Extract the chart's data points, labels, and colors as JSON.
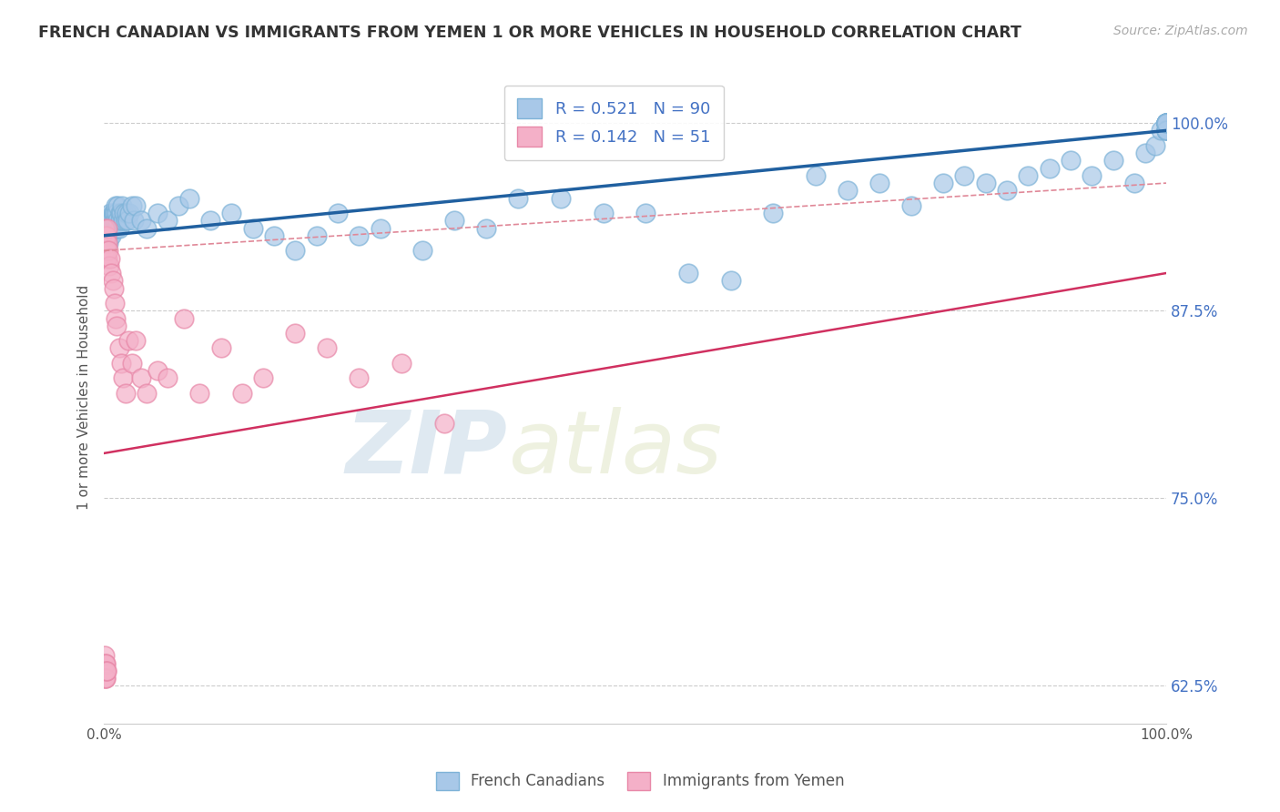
{
  "title": "FRENCH CANADIAN VS IMMIGRANTS FROM YEMEN 1 OR MORE VEHICLES IN HOUSEHOLD CORRELATION CHART",
  "source": "Source: ZipAtlas.com",
  "ylabel": "1 or more Vehicles in Household",
  "xlabel": "",
  "watermark_zip": "ZIP",
  "watermark_atlas": "atlas",
  "blue_R": 0.521,
  "blue_N": 90,
  "pink_R": 0.142,
  "pink_N": 51,
  "blue_label": "French Canadians",
  "pink_label": "Immigrants from Yemen",
  "xlim": [
    0.0,
    100.0
  ],
  "ylim": [
    60.0,
    103.5
  ],
  "yticks": [
    62.5,
    75.0,
    87.5,
    100.0
  ],
  "blue_color": "#a8c8e8",
  "blue_edge_color": "#7eb3d8",
  "pink_color": "#f4b0c8",
  "pink_edge_color": "#e888a8",
  "blue_line_color": "#2060a0",
  "pink_line_color": "#d03060",
  "pink_dash_color": "#e08898",
  "grid_color": "#cccccc",
  "title_color": "#333333",
  "legend_text_color": "#4472c4",
  "ytick_color": "#4472c4",
  "xtick_color": "#555555",
  "blue_scatter_x": [
    0.3,
    0.4,
    0.4,
    0.5,
    0.5,
    0.6,
    0.6,
    0.7,
    0.7,
    0.8,
    0.8,
    0.9,
    0.9,
    1.0,
    1.0,
    1.1,
    1.1,
    1.2,
    1.2,
    1.3,
    1.3,
    1.4,
    1.5,
    1.5,
    1.6,
    1.7,
    1.8,
    1.9,
    2.0,
    2.1,
    2.2,
    2.4,
    2.6,
    2.8,
    3.0,
    3.5,
    4.0,
    5.0,
    6.0,
    7.0,
    8.0,
    10.0,
    12.0,
    14.0,
    16.0,
    18.0,
    20.0,
    22.0,
    24.0,
    26.0,
    30.0,
    33.0,
    36.0,
    39.0,
    43.0,
    47.0,
    51.0,
    55.0,
    59.0,
    63.0,
    67.0,
    70.0,
    73.0,
    76.0,
    79.0,
    81.0,
    83.0,
    85.0,
    87.0,
    89.0,
    91.0,
    93.0,
    95.0,
    97.0,
    98.0,
    99.0,
    99.5,
    100.0,
    100.0,
    100.0,
    100.0,
    100.0,
    100.0,
    100.0,
    100.0,
    100.0,
    100.0,
    100.0,
    100.0,
    100.0
  ],
  "blue_scatter_y": [
    92.5,
    93.0,
    92.0,
    93.5,
    92.5,
    93.0,
    94.0,
    93.5,
    92.5,
    93.0,
    94.0,
    93.5,
    94.0,
    93.0,
    94.0,
    93.5,
    94.5,
    93.0,
    94.0,
    93.5,
    94.5,
    93.0,
    94.0,
    93.5,
    94.0,
    94.5,
    93.5,
    94.0,
    93.5,
    94.0,
    93.5,
    94.0,
    94.5,
    93.5,
    94.5,
    93.5,
    93.0,
    94.0,
    93.5,
    94.5,
    95.0,
    93.5,
    94.0,
    93.0,
    92.5,
    91.5,
    92.5,
    94.0,
    92.5,
    93.0,
    91.5,
    93.5,
    93.0,
    95.0,
    95.0,
    94.0,
    94.0,
    90.0,
    89.5,
    94.0,
    96.5,
    95.5,
    96.0,
    94.5,
    96.0,
    96.5,
    96.0,
    95.5,
    96.5,
    97.0,
    97.5,
    96.5,
    97.5,
    96.0,
    98.0,
    98.5,
    99.5,
    100.0,
    99.5,
    100.0,
    99.5,
    100.0,
    100.0,
    100.0,
    99.5,
    100.0,
    100.0,
    100.0,
    99.5,
    100.0
  ],
  "pink_scatter_x": [
    0.05,
    0.1,
    0.1,
    0.15,
    0.2,
    0.2,
    0.25,
    0.3,
    0.3,
    0.35,
    0.4,
    0.5,
    0.6,
    0.7,
    0.8,
    0.9,
    1.0,
    1.1,
    1.2,
    1.4,
    1.6,
    1.8,
    2.0,
    2.3,
    2.6,
    3.0,
    3.5,
    4.0,
    5.0,
    6.0,
    7.5,
    9.0,
    11.0,
    13.0,
    15.0,
    18.0,
    21.0,
    24.0,
    28.0,
    32.0,
    0.05,
    0.08,
    0.08,
    0.1,
    0.12,
    0.12,
    0.15,
    0.15,
    0.18,
    0.2,
    0.25
  ],
  "pink_scatter_y": [
    92.5,
    93.0,
    91.5,
    92.0,
    92.5,
    91.0,
    91.5,
    93.0,
    92.0,
    91.0,
    91.5,
    90.5,
    91.0,
    90.0,
    89.5,
    89.0,
    88.0,
    87.0,
    86.5,
    85.0,
    84.0,
    83.0,
    82.0,
    85.5,
    84.0,
    85.5,
    83.0,
    82.0,
    83.5,
    83.0,
    87.0,
    82.0,
    85.0,
    82.0,
    83.0,
    86.0,
    85.0,
    83.0,
    84.0,
    80.0,
    64.0,
    63.5,
    63.0,
    64.5,
    64.0,
    63.5,
    63.0,
    64.0,
    63.0,
    63.5,
    63.5
  ],
  "blue_line_x0": 0.0,
  "blue_line_y0": 92.5,
  "blue_line_x1": 100.0,
  "blue_line_y1": 99.5,
  "pink_line_x0": 0.0,
  "pink_line_y0": 78.0,
  "pink_line_x1": 100.0,
  "pink_line_y1": 90.0,
  "pink_dash_x0": 0.0,
  "pink_dash_y0": 91.5,
  "pink_dash_x1": 100.0,
  "pink_dash_y1": 96.0,
  "background_color": "#ffffff"
}
